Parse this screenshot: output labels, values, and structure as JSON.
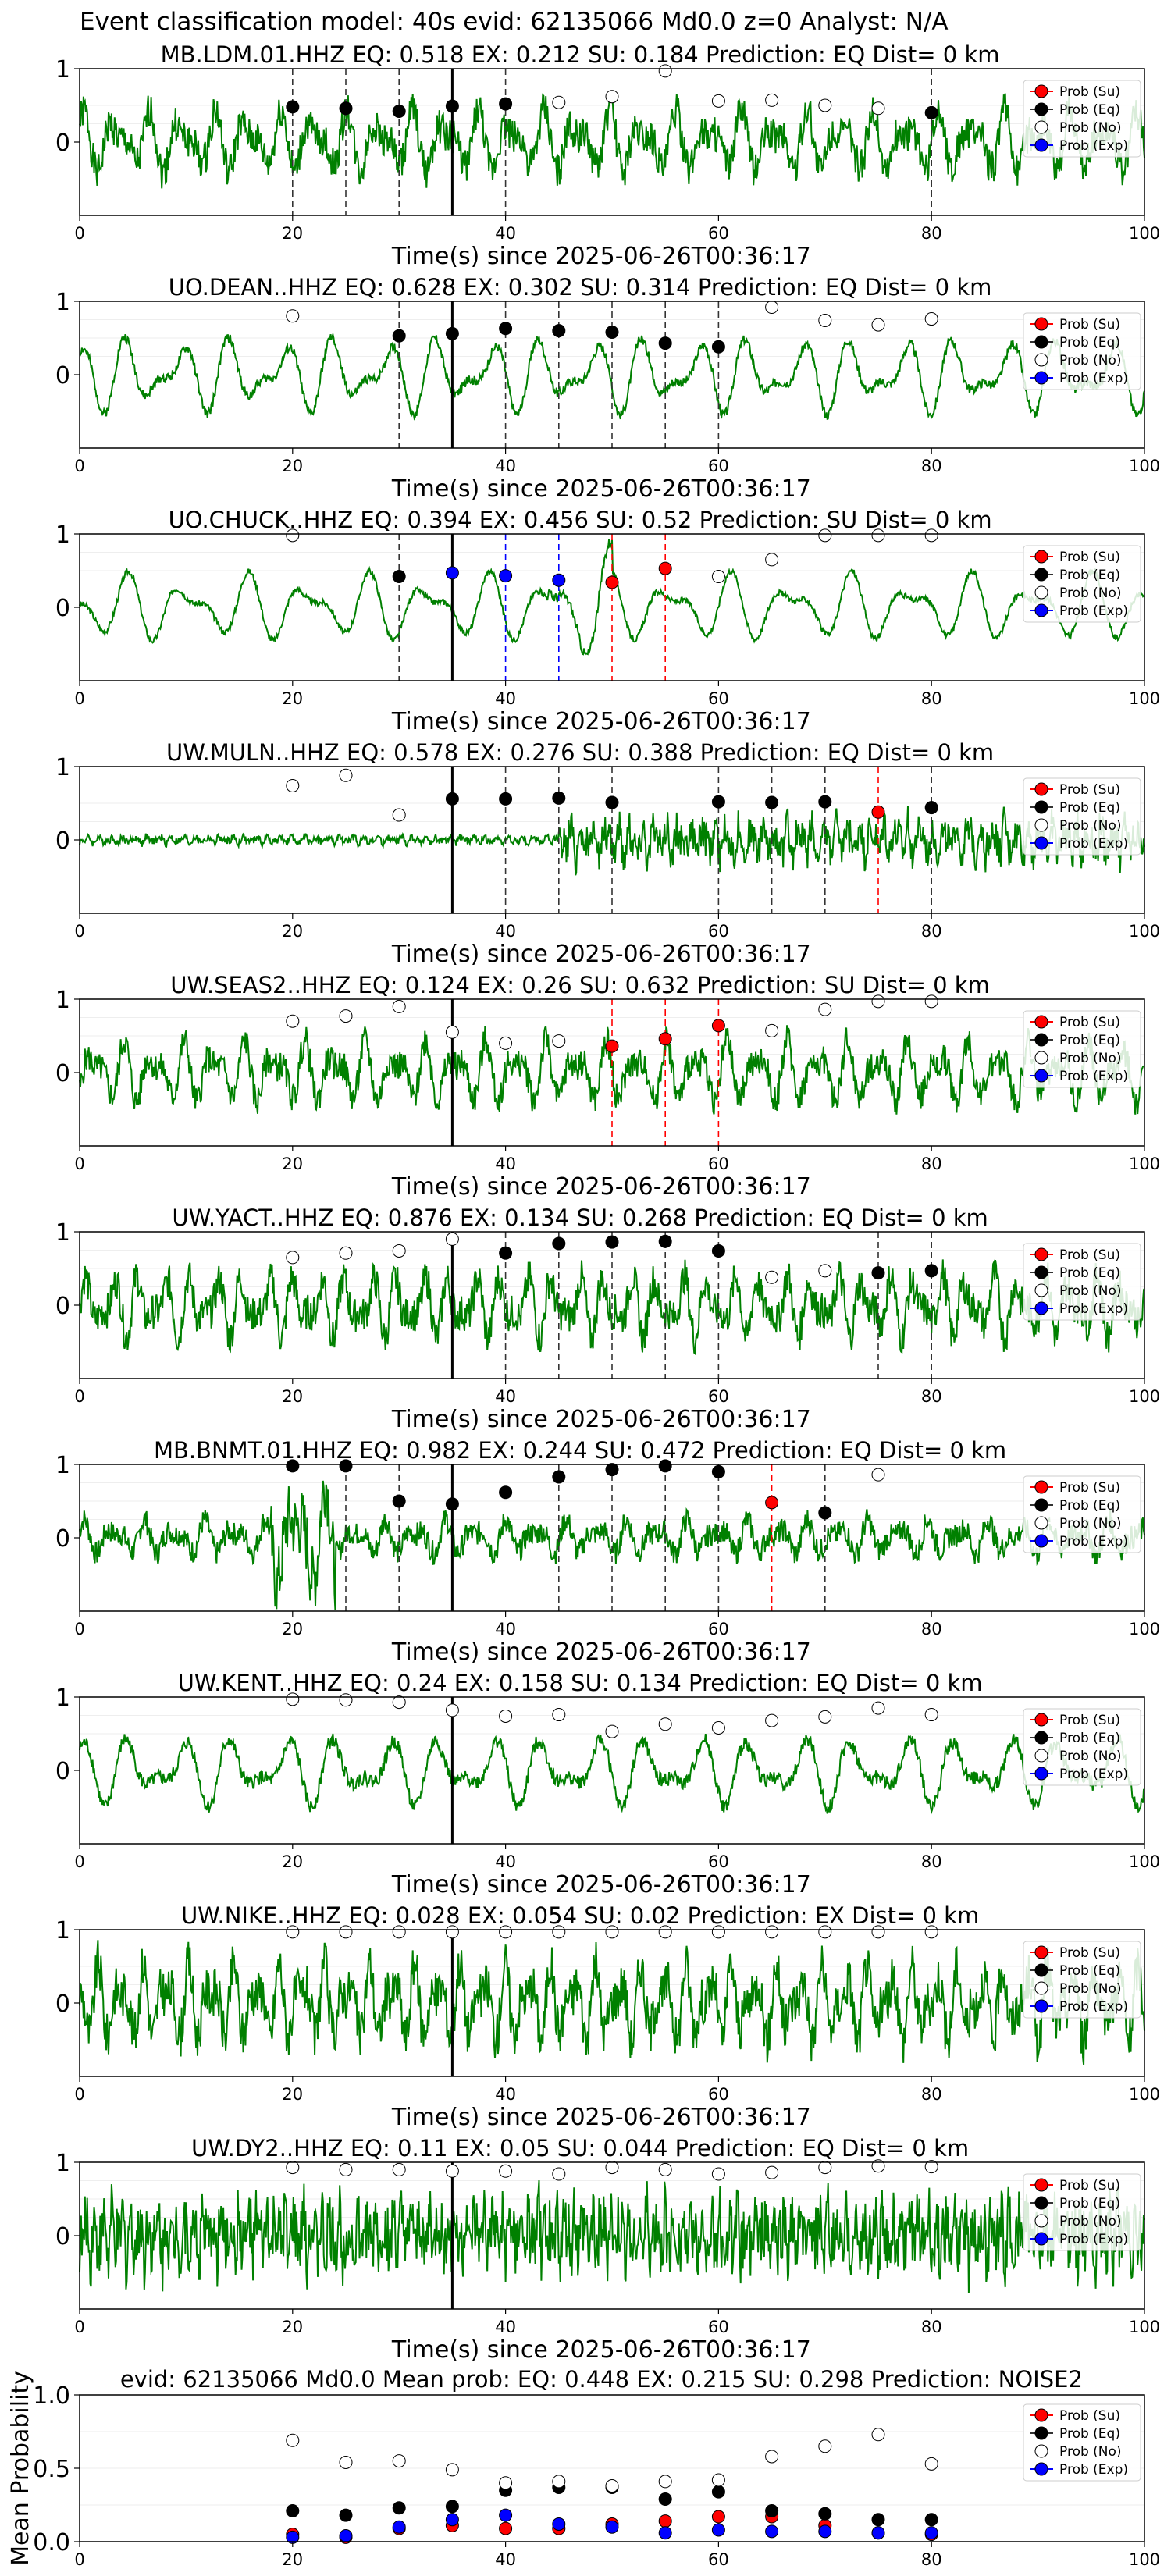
{
  "suptitle": "Event classification model: 40s evid: 62135066 Md0.0 z=0 Analyst: N/A",
  "legend_labels": [
    "Prob (Su)",
    "Prob (Eq)",
    "Prob (No)",
    "Prob (Exp)"
  ],
  "colors": {
    "su": "#ff0000",
    "eq": "#000000",
    "no": "#ffffff",
    "exp": "#0000ff",
    "wave": "#008000"
  },
  "chart_data": [
    {
      "type": "line",
      "panel": 1,
      "title": "MB.LDM.01.HHZ   EQ: 0.518  EX: 0.212  SU: 0.184   Prediction: EQ    Dist= 0 km",
      "xlabel": "Time(s) since 2025-06-26T00:36:17",
      "xlim": [
        0,
        100
      ],
      "ylim": [
        -1,
        1
      ],
      "yticks": [
        "1",
        "0"
      ],
      "xticks": [
        "0",
        "20",
        "40",
        "60",
        "80",
        "100"
      ],
      "wave": {
        "amp": 0.45,
        "freq": 0.55,
        "noise": 0.3,
        "event": [
          0,
          100,
          1.0
        ],
        "seed": 1
      },
      "event_line": 35,
      "points": [
        [
          20,
          "eq",
          0.48
        ],
        [
          25,
          "eq",
          0.46
        ],
        [
          30,
          "eq",
          0.42
        ],
        [
          35,
          "eq",
          0.49
        ],
        [
          40,
          "eq",
          0.52
        ],
        [
          45,
          "no",
          0.54
        ],
        [
          50,
          "no",
          0.62
        ],
        [
          55,
          "no",
          0.97
        ],
        [
          60,
          "no",
          0.56
        ],
        [
          65,
          "no",
          0.57
        ],
        [
          70,
          "no",
          0.5
        ],
        [
          75,
          "no",
          0.46
        ],
        [
          80,
          "eq",
          0.4
        ]
      ],
      "vlines": [
        [
          20,
          "eq"
        ],
        [
          25,
          "eq"
        ],
        [
          30,
          "eq"
        ],
        [
          40,
          "eq"
        ],
        [
          80,
          "eq"
        ]
      ]
    },
    {
      "type": "line",
      "panel": 2,
      "title": "UO.DEAN..HHZ   EQ: 0.628  EX: 0.302  SU: 0.314   Prediction: EQ    Dist= 0 km",
      "xlabel": "Time(s) since 2025-06-26T00:36:17",
      "xlim": [
        0,
        100
      ],
      "ylim": [
        -1,
        1
      ],
      "yticks": [
        "1",
        "0"
      ],
      "xticks": [
        "0",
        "20",
        "40",
        "60",
        "80",
        "100"
      ],
      "wave": {
        "amp": 0.55,
        "freq": 0.35,
        "noise": 0.08,
        "event": [
          0,
          100,
          1.0
        ],
        "seed": 2
      },
      "event_line": 35,
      "points": [
        [
          20,
          "no",
          0.8
        ],
        [
          30,
          "eq",
          0.53
        ],
        [
          35,
          "eq",
          0.56
        ],
        [
          40,
          "eq",
          0.63
        ],
        [
          45,
          "eq",
          0.6
        ],
        [
          50,
          "eq",
          0.58
        ],
        [
          55,
          "eq",
          0.43
        ],
        [
          60,
          "eq",
          0.38
        ],
        [
          65,
          "no",
          0.92
        ],
        [
          70,
          "no",
          0.74
        ],
        [
          75,
          "no",
          0.68
        ],
        [
          80,
          "no",
          0.76
        ]
      ],
      "vlines": [
        [
          30,
          "eq"
        ],
        [
          40,
          "eq"
        ],
        [
          45,
          "eq"
        ],
        [
          50,
          "eq"
        ],
        [
          55,
          "eq"
        ],
        [
          60,
          "eq"
        ]
      ]
    },
    {
      "type": "line",
      "panel": 3,
      "title": "UO.CHUCK..HHZ   EQ: 0.394  EX: 0.456  SU: 0.52   Prediction: SU    Dist= 0 km",
      "xlabel": "Time(s) since 2025-06-26T00:36:17",
      "xlim": [
        0,
        100
      ],
      "ylim": [
        -1,
        1
      ],
      "yticks": [
        "1",
        "0"
      ],
      "xticks": [
        "0",
        "20",
        "40",
        "60",
        "80",
        "100"
      ],
      "wave": {
        "amp": 0.5,
        "freq": 0.3,
        "noise": 0.05,
        "event": [
          44,
          50,
          1.8
        ],
        "seed": 3
      },
      "event_line": 35,
      "points": [
        [
          20,
          "no",
          0.98
        ],
        [
          30,
          "eq",
          0.42
        ],
        [
          35,
          "exp",
          0.47
        ],
        [
          40,
          "exp",
          0.43
        ],
        [
          45,
          "exp",
          0.37
        ],
        [
          50,
          "su",
          0.34
        ],
        [
          55,
          "su",
          0.53
        ],
        [
          60,
          "no",
          0.42
        ],
        [
          65,
          "no",
          0.65
        ],
        [
          70,
          "no",
          0.98
        ],
        [
          75,
          "no",
          0.98
        ],
        [
          80,
          "no",
          0.98
        ]
      ],
      "vlines": [
        [
          30,
          "eq"
        ],
        [
          40,
          "exp"
        ],
        [
          45,
          "exp"
        ],
        [
          50,
          "su"
        ],
        [
          55,
          "su"
        ]
      ]
    },
    {
      "type": "line",
      "panel": 4,
      "title": "UW.MULN..HHZ   EQ: 0.578  EX: 0.276  SU: 0.388   Prediction: EQ    Dist= 0 km",
      "xlabel": "Time(s) since 2025-06-26T00:36:17",
      "xlim": [
        0,
        100
      ],
      "ylim": [
        -1,
        1
      ],
      "yticks": [
        "1",
        "0"
      ],
      "xticks": [
        "0",
        "20",
        "40",
        "60",
        "80",
        "100"
      ],
      "wave": {
        "amp": 0.05,
        "freq": 1.5,
        "noise": 0.06,
        "event": [
          45,
          100,
          5.0
        ],
        "seed": 4
      },
      "event_line": 35,
      "points": [
        [
          20,
          "no",
          0.74
        ],
        [
          25,
          "no",
          0.88
        ],
        [
          30,
          "no",
          0.34
        ],
        [
          35,
          "eq",
          0.56
        ],
        [
          40,
          "eq",
          0.56
        ],
        [
          45,
          "eq",
          0.57
        ],
        [
          50,
          "eq",
          0.51
        ],
        [
          60,
          "eq",
          0.52
        ],
        [
          65,
          "eq",
          0.51
        ],
        [
          70,
          "eq",
          0.52
        ],
        [
          75,
          "su",
          0.38
        ],
        [
          80,
          "eq",
          0.44
        ]
      ],
      "vlines": [
        [
          40,
          "eq"
        ],
        [
          45,
          "eq"
        ],
        [
          50,
          "eq"
        ],
        [
          60,
          "eq"
        ],
        [
          65,
          "eq"
        ],
        [
          70,
          "eq"
        ],
        [
          75,
          "su"
        ],
        [
          80,
          "eq"
        ]
      ]
    },
    {
      "type": "line",
      "panel": 5,
      "title": "UW.SEAS2..HHZ   EQ: 0.124  EX: 0.26  SU: 0.632   Prediction: SU    Dist= 0 km",
      "xlabel": "Time(s) since 2025-06-26T00:36:17",
      "xlim": [
        0,
        100
      ],
      "ylim": [
        -1,
        1
      ],
      "yticks": [
        "1",
        "0"
      ],
      "xticks": [
        "0",
        "20",
        "40",
        "60",
        "80",
        "100"
      ],
      "wave": {
        "amp": 0.45,
        "freq": 0.6,
        "noise": 0.25,
        "event": [
          0,
          100,
          1.0
        ],
        "seed": 5
      },
      "event_line": 35,
      "points": [
        [
          20,
          "no",
          0.7
        ],
        [
          25,
          "no",
          0.77
        ],
        [
          30,
          "no",
          0.9
        ],
        [
          35,
          "no",
          0.55
        ],
        [
          40,
          "no",
          0.4
        ],
        [
          45,
          "no",
          0.43
        ],
        [
          50,
          "su",
          0.36
        ],
        [
          55,
          "su",
          0.46
        ],
        [
          60,
          "su",
          0.64
        ],
        [
          65,
          "no",
          0.57
        ],
        [
          70,
          "no",
          0.86
        ],
        [
          75,
          "no",
          0.97
        ],
        [
          80,
          "no",
          0.97
        ]
      ],
      "vlines": [
        [
          50,
          "su"
        ],
        [
          55,
          "su"
        ],
        [
          60,
          "su"
        ]
      ]
    },
    {
      "type": "line",
      "panel": 6,
      "title": "UW.YACT..HHZ   EQ: 0.876  EX: 0.134  SU: 0.268   Prediction: EQ    Dist= 0 km",
      "xlabel": "Time(s) since 2025-06-26T00:36:17",
      "xlim": [
        0,
        100
      ],
      "ylim": [
        -1,
        1
      ],
      "yticks": [
        "1",
        "0"
      ],
      "xticks": [
        "0",
        "20",
        "40",
        "60",
        "80",
        "100"
      ],
      "wave": {
        "amp": 0.45,
        "freq": 0.7,
        "noise": 0.3,
        "event": [
          0,
          100,
          1.0
        ],
        "seed": 6
      },
      "event_line": 35,
      "points": [
        [
          20,
          "no",
          0.65
        ],
        [
          25,
          "no",
          0.71
        ],
        [
          30,
          "no",
          0.74
        ],
        [
          35,
          "no",
          0.9
        ],
        [
          40,
          "eq",
          0.71
        ],
        [
          45,
          "eq",
          0.84
        ],
        [
          50,
          "eq",
          0.86
        ],
        [
          55,
          "eq",
          0.87
        ],
        [
          60,
          "eq",
          0.74
        ],
        [
          65,
          "no",
          0.38
        ],
        [
          70,
          "no",
          0.47
        ],
        [
          75,
          "eq",
          0.44
        ],
        [
          80,
          "eq",
          0.47
        ]
      ],
      "vlines": [
        [
          40,
          "eq"
        ],
        [
          45,
          "eq"
        ],
        [
          50,
          "eq"
        ],
        [
          55,
          "eq"
        ],
        [
          60,
          "eq"
        ],
        [
          75,
          "eq"
        ],
        [
          80,
          "eq"
        ]
      ]
    },
    {
      "type": "line",
      "panel": 7,
      "title": "MB.BNMT.01.HHZ   EQ: 0.982  EX: 0.244  SU: 0.472   Prediction: EQ    Dist= 0 km",
      "xlabel": "Time(s) since 2025-06-26T00:36:17",
      "xlim": [
        0,
        100
      ],
      "ylim": [
        -1,
        1
      ],
      "yticks": [
        "1",
        "0"
      ],
      "xticks": [
        "0",
        "20",
        "40",
        "60",
        "80",
        "100"
      ],
      "wave": {
        "amp": 0.25,
        "freq": 0.6,
        "noise": 0.2,
        "event": [
          18,
          24,
          3.0
        ],
        "seed": 7
      },
      "event_line": 35,
      "points": [
        [
          20,
          "eq",
          0.98
        ],
        [
          25,
          "eq",
          0.98
        ],
        [
          30,
          "eq",
          0.5
        ],
        [
          35,
          "eq",
          0.46
        ],
        [
          40,
          "eq",
          0.62
        ],
        [
          45,
          "eq",
          0.83
        ],
        [
          50,
          "eq",
          0.93
        ],
        [
          55,
          "eq",
          0.98
        ],
        [
          60,
          "eq",
          0.9
        ],
        [
          65,
          "su",
          0.48
        ],
        [
          70,
          "eq",
          0.34
        ],
        [
          75,
          "no",
          0.86
        ]
      ],
      "vlines": [
        [
          25,
          "eq"
        ],
        [
          30,
          "eq"
        ],
        [
          45,
          "eq"
        ],
        [
          50,
          "eq"
        ],
        [
          55,
          "eq"
        ],
        [
          60,
          "eq"
        ],
        [
          65,
          "su"
        ],
        [
          70,
          "eq"
        ]
      ]
    },
    {
      "type": "line",
      "panel": 8,
      "title": "UW.KENT..HHZ   EQ: 0.24  EX: 0.158  SU: 0.134   Prediction: EQ    Dist= 0 km",
      "xlabel": "Time(s) since 2025-06-26T00:36:17",
      "xlim": [
        0,
        100
      ],
      "ylim": [
        -1,
        1
      ],
      "yticks": [
        "1",
        "0"
      ],
      "xticks": [
        "0",
        "20",
        "40",
        "60",
        "80",
        "100"
      ],
      "wave": {
        "amp": 0.5,
        "freq": 0.35,
        "noise": 0.12,
        "event": [
          0,
          100,
          1.0
        ],
        "seed": 8
      },
      "event_line": 35,
      "points": [
        [
          20,
          "no",
          0.97
        ],
        [
          25,
          "no",
          0.96
        ],
        [
          30,
          "no",
          0.93
        ],
        [
          35,
          "no",
          0.82
        ],
        [
          40,
          "no",
          0.74
        ],
        [
          45,
          "no",
          0.76
        ],
        [
          50,
          "no",
          0.53
        ],
        [
          55,
          "no",
          0.63
        ],
        [
          60,
          "no",
          0.58
        ],
        [
          65,
          "no",
          0.68
        ],
        [
          70,
          "no",
          0.73
        ],
        [
          75,
          "no",
          0.85
        ],
        [
          80,
          "no",
          0.76
        ]
      ],
      "vlines": []
    },
    {
      "type": "line",
      "panel": 9,
      "title": "UW.NIKE..HHZ   EQ: 0.028  EX: 0.054  SU: 0.02   Prediction: EX    Dist= 0 km",
      "xlabel": "Time(s) since 2025-06-26T00:36:17",
      "xlim": [
        0,
        100
      ],
      "ylim": [
        -1,
        1
      ],
      "yticks": [
        "1",
        "0"
      ],
      "xticks": [
        "0",
        "20",
        "40",
        "60",
        "80",
        "100"
      ],
      "wave": {
        "amp": 0.55,
        "freq": 0.8,
        "noise": 0.4,
        "event": [
          0,
          100,
          1.0
        ],
        "seed": 9
      },
      "event_line": 35,
      "points": [
        [
          20,
          "no",
          0.97
        ],
        [
          25,
          "no",
          0.97
        ],
        [
          30,
          "no",
          0.97
        ],
        [
          35,
          "no",
          0.97
        ],
        [
          40,
          "no",
          0.97
        ],
        [
          45,
          "no",
          0.97
        ],
        [
          50,
          "no",
          0.97
        ],
        [
          55,
          "no",
          0.97
        ],
        [
          60,
          "no",
          0.97
        ],
        [
          65,
          "no",
          0.97
        ],
        [
          70,
          "no",
          0.97
        ],
        [
          75,
          "no",
          0.97
        ],
        [
          80,
          "no",
          0.97
        ]
      ],
      "vlines": []
    },
    {
      "type": "line",
      "panel": 10,
      "title": "UW.DY2..HHZ   EQ: 0.11  EX: 0.05  SU: 0.044   Prediction: EQ    Dist= 0 km",
      "xlabel": "Time(s) since 2025-06-26T00:36:17",
      "xlim": [
        0,
        100
      ],
      "ylim": [
        -1,
        1
      ],
      "yticks": [
        "1",
        "0"
      ],
      "xticks": [
        "0",
        "20",
        "40",
        "60",
        "80",
        "100"
      ],
      "wave": {
        "amp": 0.35,
        "freq": 2.0,
        "noise": 0.55,
        "event": [
          0,
          100,
          1.0
        ],
        "seed": 10
      },
      "event_line": 35,
      "points": [
        [
          20,
          "no",
          0.93
        ],
        [
          25,
          "no",
          0.9
        ],
        [
          30,
          "no",
          0.9
        ],
        [
          35,
          "no",
          0.88
        ],
        [
          40,
          "no",
          0.88
        ],
        [
          45,
          "no",
          0.84
        ],
        [
          50,
          "no",
          0.93
        ],
        [
          55,
          "no",
          0.9
        ],
        [
          60,
          "no",
          0.84
        ],
        [
          65,
          "no",
          0.86
        ],
        [
          70,
          "no",
          0.93
        ],
        [
          75,
          "no",
          0.95
        ],
        [
          80,
          "no",
          0.94
        ]
      ],
      "vlines": []
    },
    {
      "type": "scatter",
      "panel": 11,
      "title": "evid: 62135066  Md0.0   Mean prob:   EQ: 0.448  EX: 0.215  SU: 0.298   Prediction: NOISE2",
      "ylabel": "Mean Probability",
      "xlim": [
        0,
        100
      ],
      "ylim": [
        0,
        1
      ],
      "yticks": [
        "1.0",
        "0.5",
        "0.0"
      ],
      "xticks": [
        "0",
        "20",
        "40",
        "60",
        "80",
        "100"
      ],
      "x": [
        20,
        25,
        30,
        35,
        40,
        45,
        50,
        55,
        60,
        65,
        70,
        75,
        80
      ],
      "series": [
        {
          "name": "Prob (Su)",
          "key": "su",
          "values": [
            0.05,
            0.03,
            0.09,
            0.11,
            0.09,
            0.09,
            0.12,
            0.14,
            0.17,
            0.17,
            0.11,
            0.06,
            0.05
          ]
        },
        {
          "name": "Prob (Eq)",
          "key": "eq",
          "values": [
            0.21,
            0.18,
            0.23,
            0.24,
            0.35,
            0.37,
            0.37,
            0.29,
            0.34,
            0.21,
            0.19,
            0.15,
            0.15
          ]
        },
        {
          "name": "Prob (No)",
          "key": "no",
          "values": [
            0.69,
            0.54,
            0.55,
            0.49,
            0.4,
            0.41,
            0.38,
            0.41,
            0.42,
            0.58,
            0.65,
            0.73,
            0.53
          ]
        },
        {
          "name": "Prob (Exp)",
          "key": "exp",
          "values": [
            0.03,
            0.04,
            0.1,
            0.15,
            0.18,
            0.12,
            0.1,
            0.06,
            0.08,
            0.07,
            0.07,
            0.06,
            0.06
          ]
        }
      ]
    }
  ]
}
